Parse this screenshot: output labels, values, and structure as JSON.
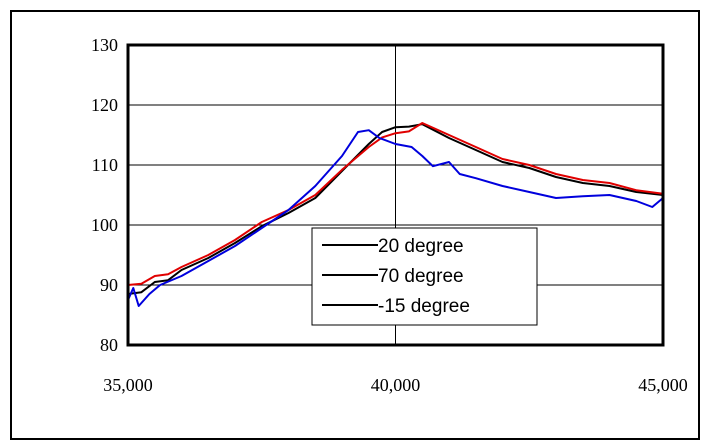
{
  "chart_data": {
    "type": "line",
    "title": "",
    "xlabel": "",
    "ylabel": "",
    "xlim": [
      35000,
      45000
    ],
    "ylim": [
      80,
      130
    ],
    "x_ticks": [
      35000,
      40000,
      45000
    ],
    "x_tick_labels": [
      "35,000",
      "40,000",
      "45,000"
    ],
    "y_ticks": [
      80,
      90,
      100,
      110,
      120,
      130
    ],
    "y_tick_labels": [
      "80",
      "90",
      "100",
      "110",
      "120",
      "130"
    ],
    "grid": "major",
    "legend_position": "center-bottom",
    "series": [
      {
        "name": "20 degree",
        "color": "#000000",
        "x": [
          35000,
          35250,
          35500,
          35750,
          36000,
          36500,
          37000,
          37500,
          38000,
          38500,
          39000,
          39500,
          39750,
          40000,
          40250,
          40500,
          41000,
          41500,
          42000,
          42500,
          43000,
          43500,
          44000,
          44500,
          45000
        ],
        "y": [
          88.5,
          88.8,
          90.5,
          90.8,
          92.5,
          94.5,
          97,
          99.8,
          102,
          104.5,
          109,
          113.5,
          115.5,
          116.3,
          116.4,
          116.8,
          114.5,
          112.5,
          110.5,
          109.5,
          108,
          107,
          106.5,
          105.5,
          105
        ]
      },
      {
        "name": "70 degree",
        "color": "#e00000",
        "x": [
          35000,
          35250,
          35500,
          35750,
          36000,
          36500,
          37000,
          37500,
          38000,
          38500,
          39000,
          39500,
          39750,
          40000,
          40250,
          40500,
          41000,
          41500,
          42000,
          42500,
          43000,
          43500,
          44000,
          44500,
          45000
        ],
        "y": [
          90,
          90.2,
          91.5,
          91.8,
          93,
          95,
          97.5,
          100.5,
          102.5,
          105,
          109.2,
          113,
          114.6,
          115.3,
          115.6,
          117,
          115,
          113,
          111,
          110,
          108.5,
          107.5,
          107,
          105.8,
          105.2
        ]
      },
      {
        "name": "-15 degree",
        "color": "#0000dd",
        "x": [
          35000,
          35100,
          35200,
          35400,
          35600,
          36000,
          36500,
          37000,
          37500,
          38000,
          38500,
          39000,
          39300,
          39500,
          39700,
          40000,
          40300,
          40500,
          40700,
          41000,
          41200,
          41500,
          42000,
          42500,
          43000,
          43500,
          44000,
          44500,
          44800,
          45000
        ],
        "y": [
          87.5,
          89.5,
          86.5,
          88.5,
          90,
          91.5,
          94,
          96.5,
          99.5,
          102.5,
          106.5,
          111.5,
          115.5,
          115.8,
          114.5,
          113.5,
          113,
          111.5,
          109.8,
          110.5,
          108.5,
          107.8,
          106.5,
          105.5,
          104.5,
          104.8,
          105,
          104,
          103,
          104.5
        ]
      }
    ]
  }
}
